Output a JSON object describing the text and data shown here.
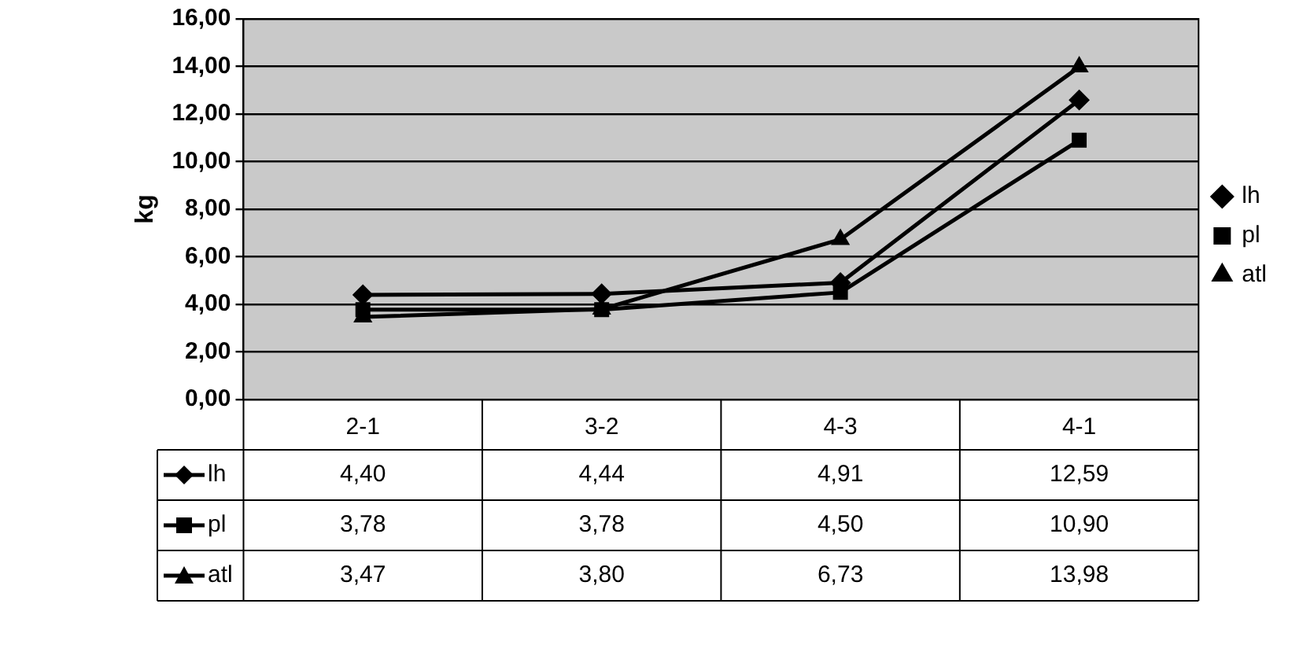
{
  "chart_data": {
    "type": "line",
    "ylabel": "kg",
    "categories": [
      "2-1",
      "3-2",
      "4-3",
      "4-1"
    ],
    "series": [
      {
        "name": "lh",
        "color": "#000000",
        "marker": "diamond",
        "values": [
          4.4,
          4.44,
          4.91,
          12.59
        ],
        "value_labels": [
          "4,40",
          "4,44",
          "4,91",
          "12,59"
        ]
      },
      {
        "name": "pl",
        "color": "#000000",
        "marker": "square",
        "values": [
          3.78,
          3.78,
          4.5,
          10.9
        ],
        "value_labels": [
          "3,78",
          "3,78",
          "4,50",
          "10,90"
        ]
      },
      {
        "name": "atl",
        "color": "#000000",
        "marker": "triangle",
        "values": [
          3.47,
          3.8,
          6.73,
          13.98
        ],
        "value_labels": [
          "3,47",
          "3,80",
          "6,73",
          "13,98"
        ]
      }
    ],
    "ylim": [
      0,
      16
    ],
    "yticks": [
      {
        "value": 0,
        "label": "0,00"
      },
      {
        "value": 2,
        "label": "2,00"
      },
      {
        "value": 4,
        "label": "4,00"
      },
      {
        "value": 6,
        "label": "6,00"
      },
      {
        "value": 8,
        "label": "8,00"
      },
      {
        "value": 10,
        "label": "10,00"
      },
      {
        "value": 12,
        "label": "12,00"
      },
      {
        "value": 14,
        "label": "14,00"
      },
      {
        "value": 16,
        "label": "16,00"
      }
    ],
    "grid": "y",
    "legend": "right",
    "line_style": "solid"
  }
}
